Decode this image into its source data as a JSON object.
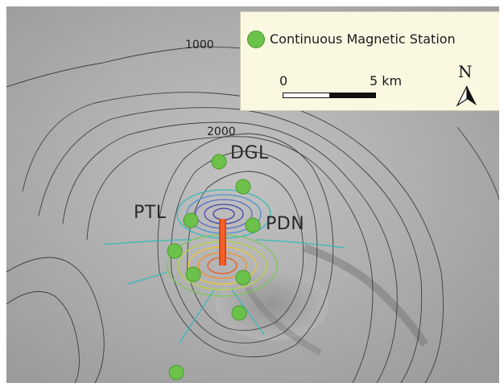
{
  "map": {
    "contour_labels": [
      "1000",
      "2000"
    ],
    "stations": [
      {
        "name": "DGL",
        "label": "DGL"
      },
      {
        "name": "PTL",
        "label": "PTL"
      },
      {
        "name": "PDN",
        "label": "PDN"
      },
      {
        "name": "unlabeled-1",
        "label": ""
      },
      {
        "name": "unlabeled-2",
        "label": ""
      },
      {
        "name": "unlabeled-3",
        "label": ""
      },
      {
        "name": "unlabeled-4",
        "label": ""
      },
      {
        "name": "unlabeled-5",
        "label": ""
      },
      {
        "name": "unlabeled-6",
        "label": ""
      }
    ],
    "colors": {
      "station_fill": "#6cc14a",
      "legend_background": "#fbf8e2",
      "terrain": "#a9a9a9",
      "contour_line": "#2b2b2b",
      "anomaly_positive": "#e8401c",
      "anomaly_negative": "#3a3aa0"
    }
  },
  "legend": {
    "station_label": "Continuous Magnetic Station",
    "scale_start": "0",
    "scale_end": "5 km",
    "north_label": "N",
    "icons": {
      "station": "green-dot-icon",
      "north": "north-arrow-icon"
    }
  }
}
